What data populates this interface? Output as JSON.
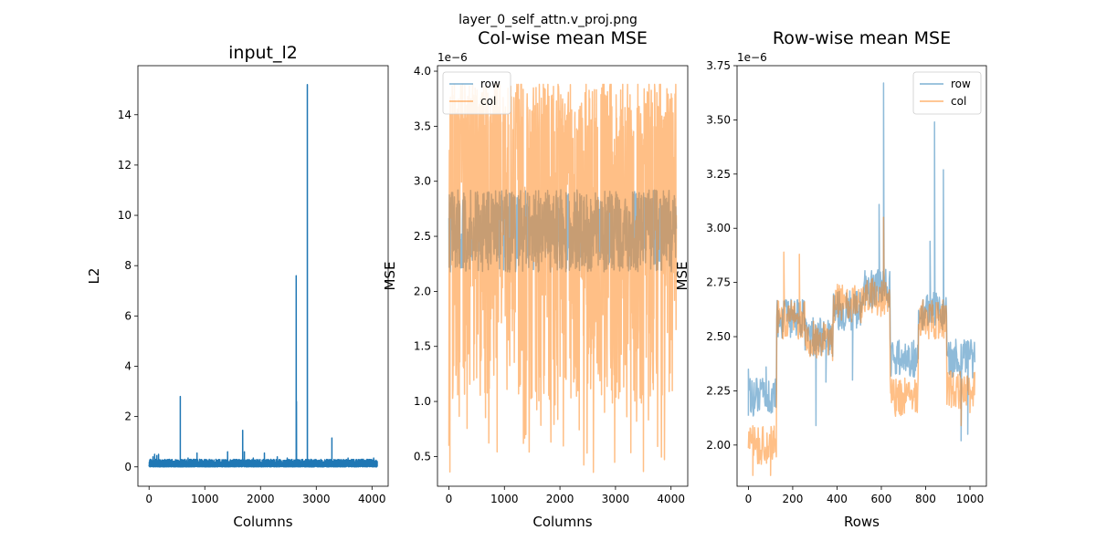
{
  "figure": {
    "suptitle": "layer_0_self_attn.v_proj.png"
  },
  "colors": {
    "blue": "#1f77b4",
    "orange": "#ff7f0e",
    "axis": "#000000"
  },
  "chart_data": [
    {
      "type": "line",
      "title": "input_l2",
      "xlabel": "Columns",
      "ylabel": "L2",
      "offset_text": "",
      "xlim": [
        -200,
        4290
      ],
      "ylim": [
        -0.77,
        15.95
      ],
      "xticks": [
        0,
        1000,
        2000,
        3000,
        4000
      ],
      "yticks": [
        0,
        2,
        4,
        6,
        8,
        10,
        12,
        14
      ],
      "legend": null,
      "series": [
        {
          "color": "#1f77b4",
          "alpha": 1.0,
          "x_range": [
            0,
            4095
          ],
          "baseline": [
            0.0,
            0.3
          ],
          "spikes": [
            [
              20,
              0.3
            ],
            [
              70,
              0.4
            ],
            [
              100,
              0.5
            ],
            [
              140,
              0.45
            ],
            [
              170,
              0.5
            ],
            [
              560,
              2.8
            ],
            [
              640,
              0.3
            ],
            [
              700,
              0.35
            ],
            [
              860,
              0.55
            ],
            [
              1080,
              0.3
            ],
            [
              1200,
              0.3
            ],
            [
              1410,
              0.6
            ],
            [
              1520,
              0.3
            ],
            [
              1680,
              1.45
            ],
            [
              1710,
              0.6
            ],
            [
              1870,
              0.35
            ],
            [
              2070,
              0.55
            ],
            [
              2300,
              0.4
            ],
            [
              2480,
              0.35
            ],
            [
              2640,
              7.6
            ],
            [
              2645,
              2.6
            ],
            [
              2840,
              15.2
            ],
            [
              3280,
              1.15
            ],
            [
              3570,
              0.35
            ],
            [
              3820,
              0.3
            ],
            [
              4030,
              0.35
            ]
          ]
        }
      ]
    },
    {
      "type": "line",
      "title": "Col-wise mean MSE",
      "xlabel": "Columns",
      "ylabel": "MSE",
      "offset_text": "1e−6",
      "xlim": [
        -204.8,
        4300.8
      ],
      "ylim": [
        0.23,
        4.05
      ],
      "xticks": [
        0,
        1000,
        2000,
        3000,
        4000
      ],
      "yticks": [
        0.5,
        1.0,
        1.5,
        2.0,
        2.5,
        3.0,
        3.5,
        4.0
      ],
      "ytick_labels": [
        "0.5",
        "1.0",
        "1.5",
        "2.0",
        "2.5",
        "3.0",
        "3.5",
        "4.0"
      ],
      "legend": {
        "placement": "upper-left",
        "entries": [
          "row",
          "col"
        ]
      },
      "series": [
        {
          "name": "row",
          "color": "#1f77b4",
          "alpha": 0.5,
          "x_range": [
            0,
            4095
          ],
          "mean": 2.55,
          "noise": 0.22,
          "min": 2.0,
          "max": 3.0,
          "spikes": []
        },
        {
          "name": "col",
          "color": "#ff7f0e",
          "alpha": 0.5,
          "x_range": [
            0,
            4095
          ],
          "mean": 2.55,
          "noise": 0.9,
          "min": 0.35,
          "max": 3.88,
          "spikes": []
        }
      ]
    },
    {
      "type": "line",
      "title": "Row-wise mean MSE",
      "xlabel": "Rows",
      "ylabel": "MSE",
      "offset_text": "1e−6",
      "xlim": [
        -51.15,
        1074.15
      ],
      "ylim": [
        1.81,
        3.75
      ],
      "xticks": [
        0,
        200,
        400,
        600,
        800,
        1000
      ],
      "yticks": [
        2.0,
        2.25,
        2.5,
        2.75,
        3.0,
        3.25,
        3.5,
        3.75
      ],
      "ytick_labels": [
        "2.00",
        "2.25",
        "2.50",
        "2.75",
        "3.00",
        "3.25",
        "3.50",
        "3.75"
      ],
      "legend": {
        "placement": "upper-right",
        "entries": [
          "row",
          "col"
        ]
      },
      "series": [
        {
          "name": "row",
          "color": "#1f77b4",
          "alpha": 0.5,
          "x_range": [
            0,
            1023
          ],
          "noise": 0.07,
          "segments": [
            [
              0,
              127,
              2.22
            ],
            [
              128,
              255,
              2.58
            ],
            [
              256,
              383,
              2.5
            ],
            [
              384,
              511,
              2.62
            ],
            [
              512,
              639,
              2.72
            ],
            [
              640,
              767,
              2.4
            ],
            [
              768,
              895,
              2.62
            ],
            [
              896,
              1023,
              2.4
            ]
          ],
          "spikes": [
            [
              0,
              2.35
            ],
            [
              80,
              2.36
            ],
            [
              305,
              2.09
            ],
            [
              350,
              2.29
            ],
            [
              470,
              2.3
            ],
            [
              590,
              3.11
            ],
            [
              610,
              3.67
            ],
            [
              645,
              2.35
            ],
            [
              820,
              2.94
            ],
            [
              840,
              3.49
            ],
            [
              880,
              3.27
            ],
            [
              960,
              2.02
            ],
            [
              990,
              2.05
            ]
          ]
        },
        {
          "name": "col",
          "color": "#ff7f0e",
          "alpha": 0.5,
          "x_range": [
            0,
            1023
          ],
          "noise": 0.07,
          "segments": [
            [
              0,
              127,
              2.0
            ],
            [
              128,
              255,
              2.58
            ],
            [
              256,
              383,
              2.48
            ],
            [
              384,
              511,
              2.65
            ],
            [
              512,
              639,
              2.68
            ],
            [
              640,
              767,
              2.22
            ],
            [
              768,
              895,
              2.58
            ],
            [
              896,
              1023,
              2.25
            ]
          ],
          "spikes": [
            [
              20,
              1.86
            ],
            [
              100,
              1.86
            ],
            [
              160,
              2.89
            ],
            [
              230,
              2.88
            ],
            [
              610,
              3.05
            ],
            [
              960,
              2.09
            ],
            [
              1000,
              2.15
            ]
          ]
        }
      ]
    }
  ]
}
